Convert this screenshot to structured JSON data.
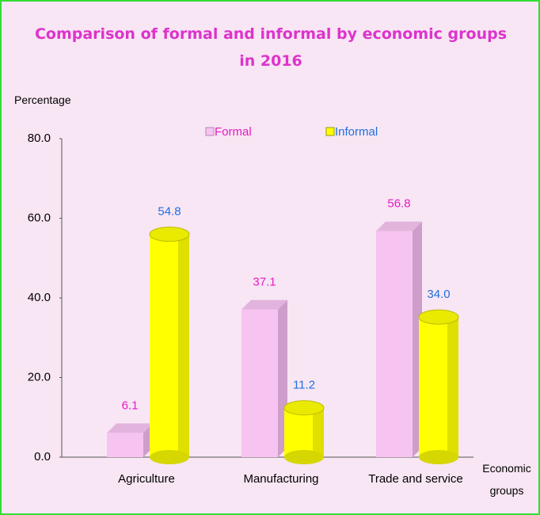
{
  "chart_data": {
    "type": "bar3d",
    "title": "Comparison of formal and informal by economic groups in 2016",
    "y_label": "Percentage",
    "x_label": "Economic groups",
    "categories": [
      "Agriculture",
      "Manufacturing",
      "Trade and service"
    ],
    "series": [
      {
        "name": "Formal",
        "color": "#f7c3f0",
        "label_color": "#e619c8",
        "values": [
          6.1,
          37.1,
          56.8
        ],
        "value_labels": [
          "6.1",
          "37.1",
          "56.8"
        ]
      },
      {
        "name": "Informal",
        "color": "#ffff00",
        "label_color": "#1f6fe0",
        "values": [
          54.8,
          11.2,
          34.0
        ],
        "value_labels": [
          "54.8",
          "11.2",
          "34.0"
        ]
      }
    ],
    "ylim": [
      0,
      80
    ],
    "yticks": [
      {
        "value": 0,
        "label": "0.0"
      },
      {
        "value": 20,
        "label": "20.0"
      },
      {
        "value": 40,
        "label": "40.0"
      },
      {
        "value": 60,
        "label": "60.0"
      },
      {
        "value": 80,
        "label": "80.0"
      }
    ],
    "legend": "top"
  }
}
